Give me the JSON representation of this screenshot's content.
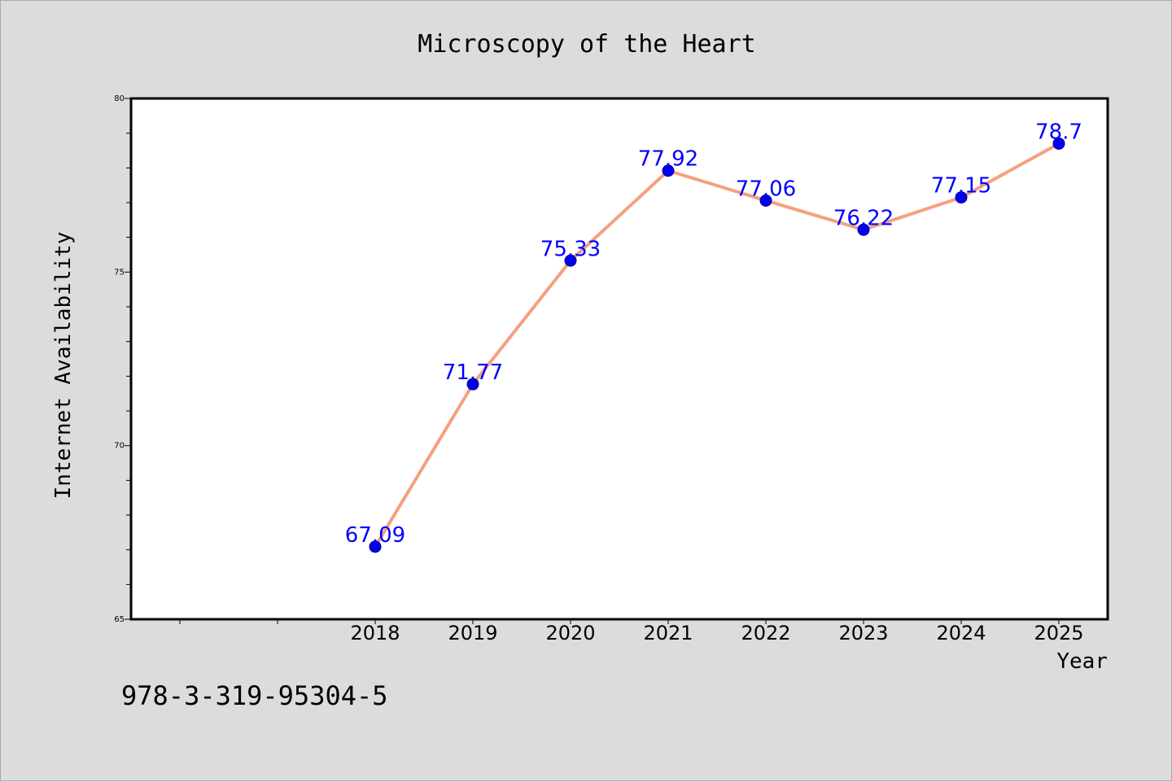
{
  "chart_data": {
    "type": "line",
    "title": "Microscopy of the Heart",
    "xlabel": "Year",
    "ylabel": "Internet Availability",
    "categories": [
      "2018",
      "2019",
      "2020",
      "2021",
      "2022",
      "2023",
      "2024",
      "2025"
    ],
    "category_slots": 10,
    "category_offset": 2,
    "series": [
      {
        "values": [
          67.09,
          71.77,
          75.33,
          77.92,
          77.06,
          76.22,
          77.15,
          78.7
        ]
      }
    ],
    "data_labels": [
      "67.09",
      "71.77",
      "75.33",
      "77.92",
      "77.06",
      "76.22",
      "77.15",
      "78.7"
    ],
    "ylim": [
      65,
      80
    ],
    "yticks": [
      65,
      70,
      75,
      80
    ],
    "grid": false,
    "legend": "none"
  },
  "footer": {
    "text": "978-3-319-95304-5"
  },
  "colors": {
    "background": "#dcdcdc",
    "plot_background": "#ffffff",
    "line": "#f4a07e",
    "marker": "#0000ee",
    "label": "#0000ff"
  }
}
